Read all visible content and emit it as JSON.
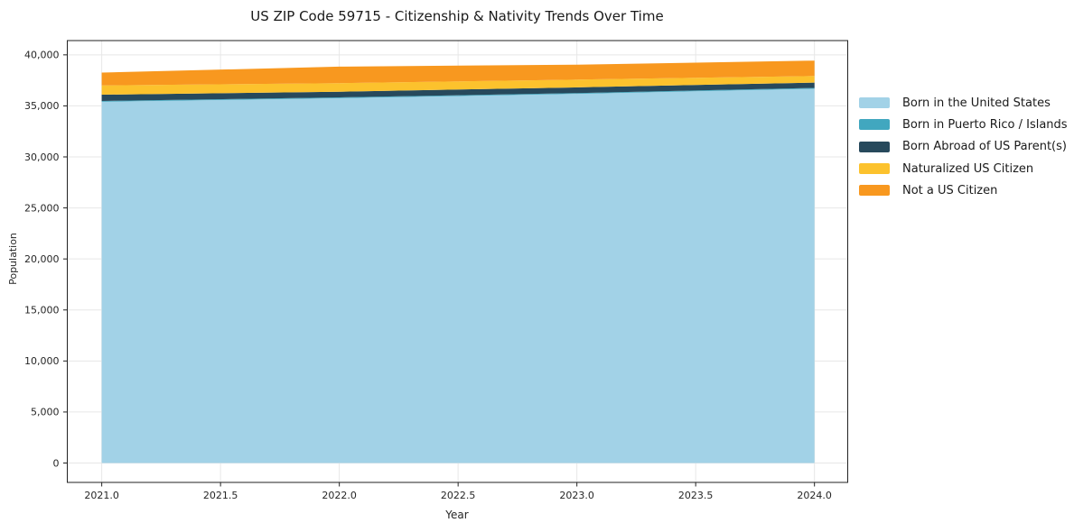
{
  "chart_data": {
    "type": "area",
    "stacked": true,
    "title": "US ZIP Code 59715 - Citizenship & Nativity Trends Over Time",
    "xlabel": "Year",
    "ylabel": "Population",
    "x": [
      2021,
      2022,
      2023,
      2024
    ],
    "series": [
      {
        "name": "Born in the United States",
        "color": "#a2d2e7",
        "values": [
          35400,
          35750,
          36180,
          36680
        ]
      },
      {
        "name": "Born in Puerto Rico / Islands",
        "color": "#41a7bf",
        "values": [
          80,
          80,
          80,
          80
        ]
      },
      {
        "name": "Born Abroad of US Parent(s)",
        "color": "#27495c",
        "values": [
          620,
          560,
          550,
          520
        ]
      },
      {
        "name": "Naturalized US Citizen",
        "color": "#fcc22d",
        "values": [
          900,
          840,
          760,
          650
        ]
      },
      {
        "name": "Not a US Citizen",
        "color": "#f8981f",
        "values": [
          1260,
          1620,
          1470,
          1510
        ]
      }
    ],
    "xticks": [
      2021.0,
      2021.5,
      2022.0,
      2022.5,
      2023.0,
      2023.5,
      2024.0
    ],
    "xtick_labels": [
      "2021.0",
      "2021.5",
      "2022.0",
      "2022.5",
      "2023.0",
      "2023.5",
      "2024.0"
    ],
    "yticks": [
      0,
      5000,
      10000,
      15000,
      20000,
      25000,
      30000,
      35000,
      40000
    ],
    "ytick_labels": [
      "0",
      "5,000",
      "10,000",
      "15,000",
      "20,000",
      "25,000",
      "30,000",
      "35,000",
      "40,000"
    ],
    "xlim": [
      2020.855,
      2024.14
    ],
    "ylim": [
      -1900,
      41400
    ],
    "grid": true,
    "grid_color": "#e7e7e7",
    "axis_color": "#222222",
    "tick_label_color": "#262626",
    "legend_position": "right-outside"
  }
}
